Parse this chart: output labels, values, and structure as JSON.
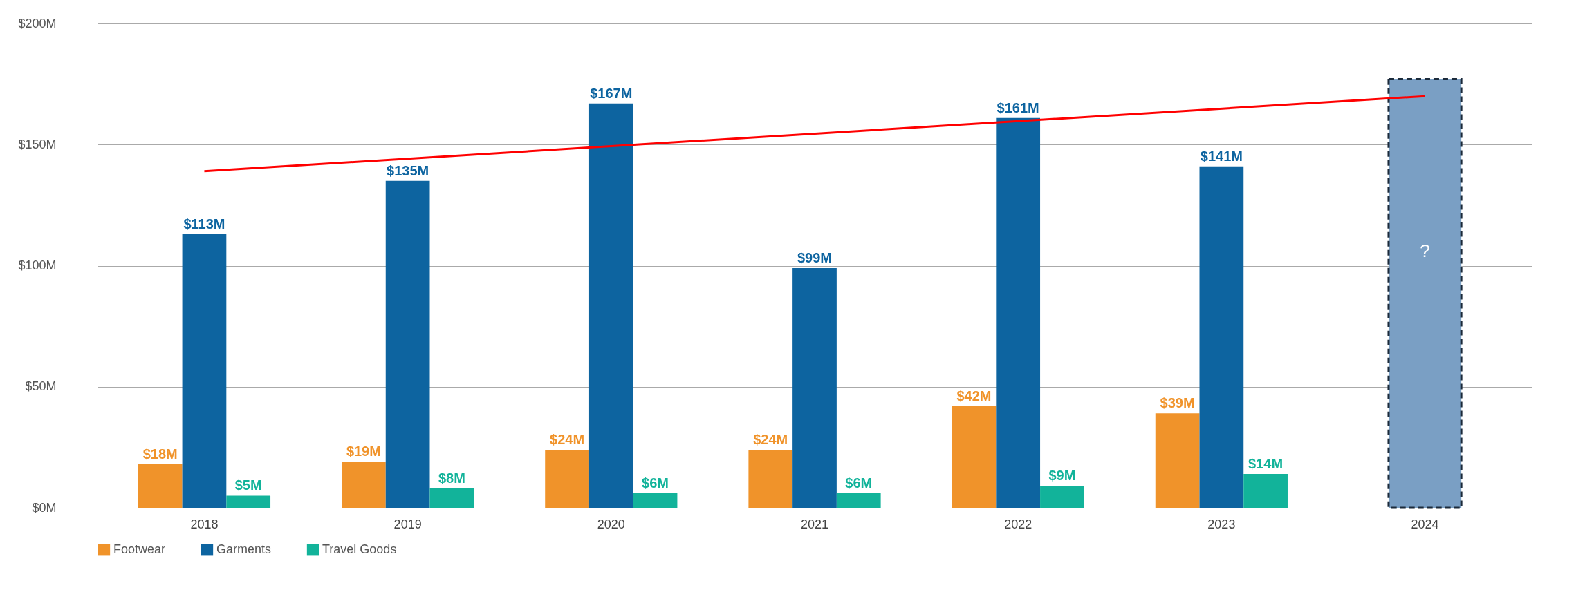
{
  "chart_data": {
    "type": "bar",
    "categories": [
      "2018",
      "2019",
      "2020",
      "2021",
      "2022",
      "2023",
      "2024"
    ],
    "series": [
      {
        "name": "Footwear",
        "color": "#f0932a",
        "values": [
          18,
          19,
          24,
          24,
          42,
          39,
          null
        ],
        "value_labels": [
          "$18M",
          "$19M",
          "$24M",
          "$24M",
          "$42M",
          "$39M",
          null
        ]
      },
      {
        "name": "Garments",
        "color": "#0d64a0",
        "values": [
          113,
          135,
          167,
          99,
          161,
          141,
          null
        ],
        "value_labels": [
          "$113M",
          "$135M",
          "$167M",
          "$99M",
          "$161M",
          "$141M",
          null
        ]
      },
      {
        "name": "Travel Goods",
        "color": "#12b39a",
        "values": [
          5,
          8,
          6,
          6,
          9,
          14,
          null
        ],
        "value_labels": [
          "$5M",
          "$8M",
          "$6M",
          "$6M",
          "$9M",
          "$14M",
          null
        ]
      },
      {
        "type": "bar",
        "color": "#7a9fc4",
        "line_style": "dashed",
        "values": [
          null,
          null,
          null,
          null,
          null,
          null,
          177
        ]
      },
      {
        "type": "line",
        "color": "#ff0000",
        "values": [
          139,
          null,
          null,
          null,
          null,
          null,
          170
        ]
      }
    ],
    "annotations": [
      "?"
    ],
    "ylim": [
      0,
      200
    ],
    "yticks": [
      {
        "value": 0,
        "label": "$0M"
      },
      {
        "value": 50,
        "label": "$50M"
      },
      {
        "value": 100,
        "label": "$100M"
      },
      {
        "value": 150,
        "label": "$150M"
      },
      {
        "value": 200,
        "label": "$200M"
      }
    ],
    "grid": "y",
    "legend": "bottom"
  }
}
